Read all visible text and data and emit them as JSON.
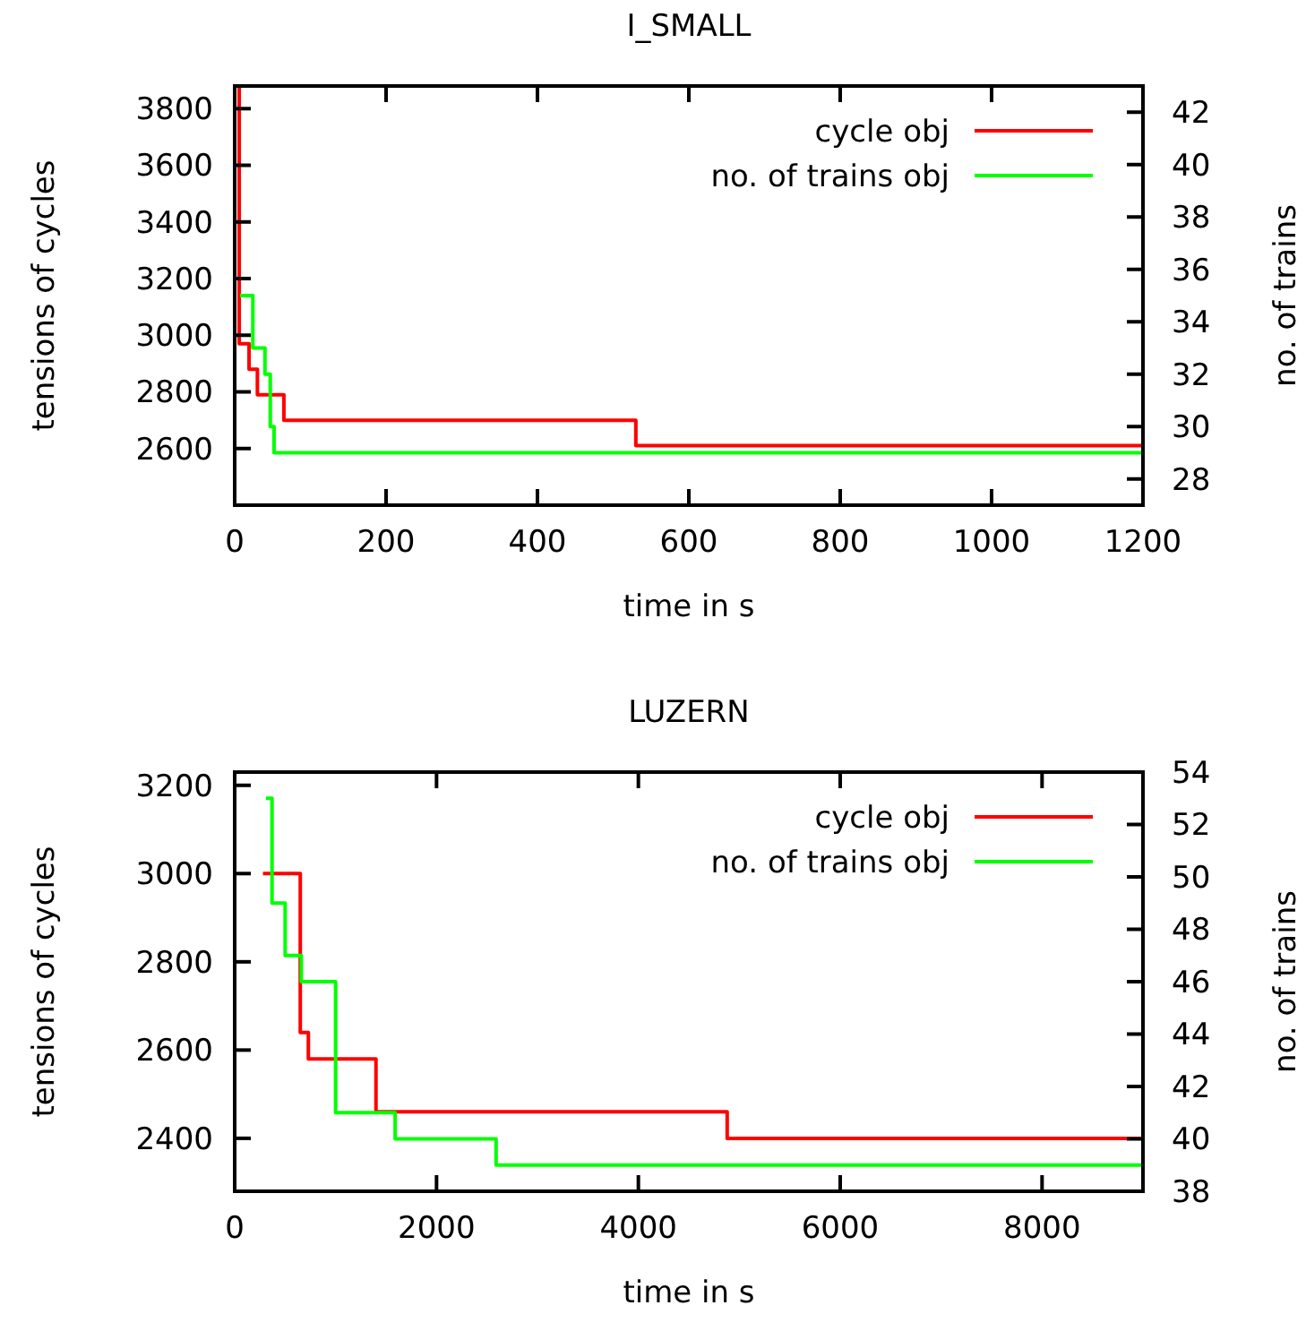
{
  "chart_data": [
    {
      "type": "step",
      "title": "I_SMALL",
      "xlabel": "time in s",
      "ylabel": "tensions of cycles",
      "y2label": "no. of trains",
      "xlim": [
        0,
        1200
      ],
      "xticks": [
        0,
        200,
        400,
        600,
        800,
        1000,
        1200
      ],
      "ylim": [
        2400,
        3880
      ],
      "yticks": [
        2600,
        2800,
        3000,
        3200,
        3400,
        3600,
        3800
      ],
      "y2lim": [
        27,
        43
      ],
      "y2ticks": [
        28,
        30,
        32,
        34,
        36,
        38,
        40,
        42
      ],
      "legend": "top right",
      "grid": false,
      "series": [
        {
          "name": "cycle obj",
          "color": "#ff0000",
          "x": [
            6,
            6,
            19,
            30,
            65,
            530,
            1200
          ],
          "values": [
            3880,
            2970,
            2880,
            2790,
            2700,
            2610,
            2610
          ]
        },
        {
          "name": "no. of trains obj",
          "color": "#00ff00",
          "axis": "y2",
          "x": [
            7,
            24,
            40,
            47,
            52,
            1200
          ],
          "values": [
            35,
            33,
            32,
            30,
            29,
            29
          ]
        }
      ]
    },
    {
      "type": "step",
      "title": "LUZERN",
      "xlabel": "time in s",
      "ylabel": "tensions of cycles",
      "y2label": "no. of trains",
      "xlim": [
        0,
        9000
      ],
      "xticks": [
        0,
        2000,
        4000,
        6000,
        8000
      ],
      "ylim": [
        2280,
        3230
      ],
      "yticks": [
        2400,
        2600,
        2800,
        3000,
        3200
      ],
      "y2lim": [
        38,
        54
      ],
      "y2ticks": [
        38,
        40,
        42,
        44,
        46,
        48,
        50,
        52,
        54
      ],
      "legend": "top right",
      "grid": false,
      "series": [
        {
          "name": "cycle obj",
          "color": "#ff0000",
          "x": [
            280,
            650,
            730,
            1400,
            4880,
            9000
          ],
          "values": [
            3000,
            2640,
            2580,
            2460,
            2400,
            2400
          ]
        },
        {
          "name": "no. of trains obj",
          "color": "#00ff00",
          "axis": "y2",
          "x": [
            310,
            370,
            500,
            660,
            1000,
            1590,
            2590,
            9000
          ],
          "values": [
            53,
            49,
            47,
            46,
            41,
            40,
            39,
            39
          ]
        }
      ]
    }
  ]
}
